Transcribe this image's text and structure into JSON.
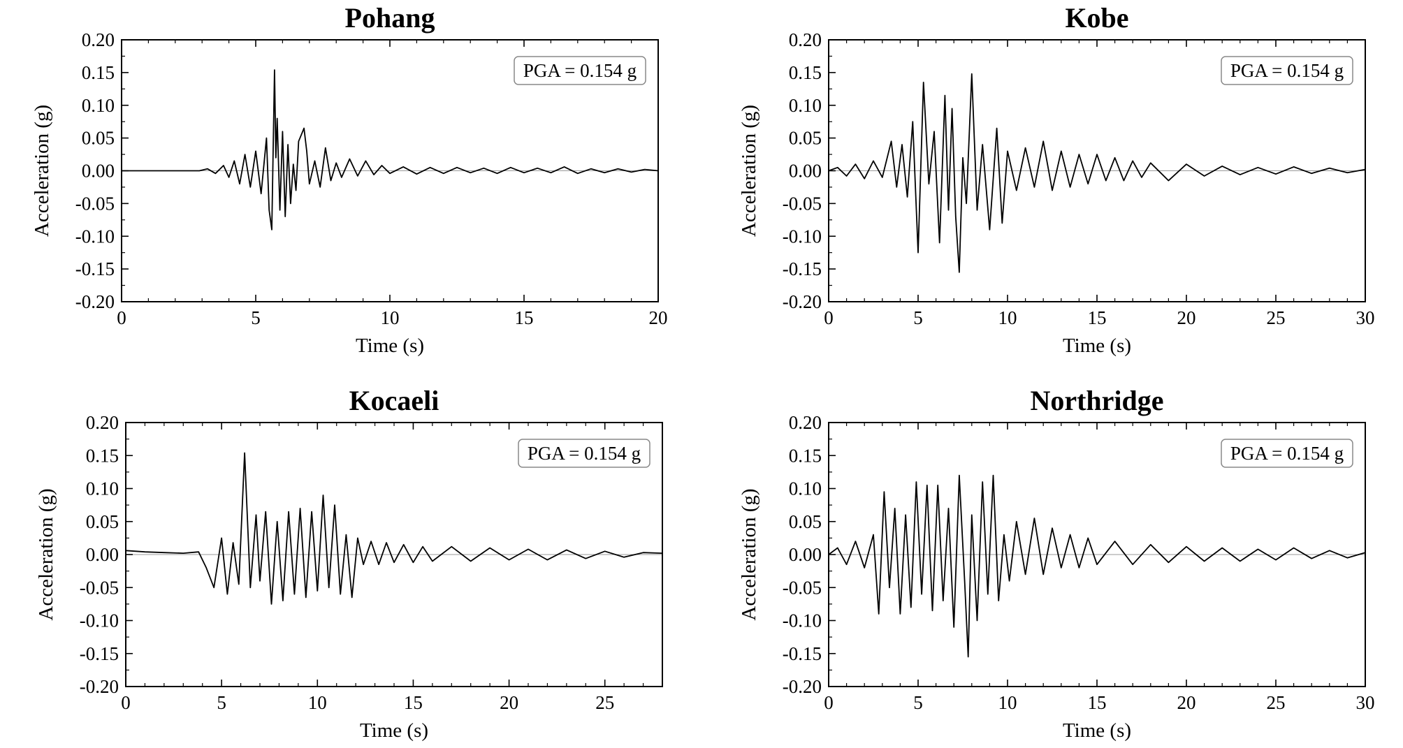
{
  "chart_data": [
    {
      "type": "line",
      "title": "Pohang",
      "xlabel": "Time (s)",
      "ylabel": "Acceleration (g)",
      "xlim": [
        0,
        20
      ],
      "ylim": [
        -0.2,
        0.2
      ],
      "xticks": [
        0,
        5,
        10,
        15,
        20
      ],
      "xtick_labels": [
        "0",
        "5",
        "10",
        "15",
        "20"
      ],
      "yticks": [
        0.2,
        0.15,
        0.1,
        0.05,
        0.0,
        -0.05,
        -0.1,
        -0.15,
        -0.2
      ],
      "ytick_labels": [
        "0.20",
        "0.15",
        "0.10",
        "0.05",
        "0.00",
        "-0.05",
        "-0.10",
        "-0.15",
        "-0.20"
      ],
      "annotation": "PGA = 0.154 g",
      "legend_position": "top-right",
      "grid": false,
      "series": [
        {
          "x": [
            0,
            2.9,
            3.2,
            3.5,
            3.8,
            4.0,
            4.2,
            4.4,
            4.6,
            4.8,
            5.0,
            5.2,
            5.4,
            5.5,
            5.6,
            5.7,
            5.75,
            5.8,
            5.9,
            6.0,
            6.1,
            6.2,
            6.3,
            6.4,
            6.5,
            6.6,
            6.8,
            6.9,
            7.0,
            7.2,
            7.4,
            7.6,
            7.8,
            8.0,
            8.2,
            8.5,
            8.8,
            9.1,
            9.4,
            9.7,
            10.0,
            10.5,
            11.0,
            11.5,
            12.0,
            12.5,
            13.0,
            13.5,
            14.0,
            14.5,
            15.0,
            15.5,
            16.0,
            16.5,
            17.0,
            17.5,
            18.0,
            18.5,
            19.0,
            19.5,
            20.0
          ],
          "y": [
            0,
            0,
            0.003,
            -0.004,
            0.008,
            -0.01,
            0.015,
            -0.02,
            0.025,
            -0.025,
            0.03,
            -0.035,
            0.05,
            -0.06,
            -0.09,
            0.154,
            0.02,
            0.08,
            -0.06,
            0.06,
            -0.07,
            0.04,
            -0.05,
            0.01,
            -0.03,
            0.045,
            0.065,
            0.03,
            -0.02,
            0.015,
            -0.025,
            0.035,
            -0.015,
            0.012,
            -0.01,
            0.018,
            -0.008,
            0.015,
            -0.006,
            0.008,
            -0.004,
            0.006,
            -0.005,
            0.005,
            -0.004,
            0.005,
            -0.003,
            0.004,
            -0.004,
            0.005,
            -0.003,
            0.004,
            -0.003,
            0.006,
            -0.004,
            0.003,
            -0.003,
            0.003,
            -0.002,
            0.002,
            0
          ]
        }
      ]
    },
    {
      "type": "line",
      "title": "Kobe",
      "xlabel": "Time (s)",
      "ylabel": "Acceleration (g)",
      "xlim": [
        0,
        30
      ],
      "ylim": [
        -0.2,
        0.2
      ],
      "xticks": [
        0,
        5,
        10,
        15,
        20,
        25,
        30
      ],
      "xtick_labels": [
        "0",
        "5",
        "10",
        "15",
        "20",
        "25",
        "30"
      ],
      "yticks": [
        0.2,
        0.15,
        0.1,
        0.05,
        0.0,
        -0.05,
        -0.1,
        -0.15,
        -0.2
      ],
      "ytick_labels": [
        "0.20",
        "0.15",
        "0.10",
        "0.05",
        "0.00",
        "-0.05",
        "-0.10",
        "-0.15",
        "-0.20"
      ],
      "annotation": "PGA = 0.154 g",
      "legend_position": "top-right",
      "grid": false,
      "series": [
        {
          "x": [
            0,
            0.5,
            1.0,
            1.5,
            2.0,
            2.5,
            3.0,
            3.5,
            3.8,
            4.1,
            4.4,
            4.7,
            5.0,
            5.3,
            5.6,
            5.9,
            6.2,
            6.5,
            6.7,
            6.9,
            7.1,
            7.3,
            7.5,
            7.7,
            8.0,
            8.3,
            8.6,
            9.0,
            9.4,
            9.7,
            10.0,
            10.5,
            11.0,
            11.5,
            12.0,
            12.5,
            13.0,
            13.5,
            14.0,
            14.5,
            15.0,
            15.5,
            16.0,
            16.5,
            17.0,
            17.5,
            18.0,
            19.0,
            20.0,
            21.0,
            22.0,
            23.0,
            24.0,
            25.0,
            26.0,
            27.0,
            28.0,
            29.0,
            30.0
          ],
          "y": [
            0,
            0.005,
            -0.008,
            0.01,
            -0.012,
            0.015,
            -0.01,
            0.045,
            -0.025,
            0.04,
            -0.04,
            0.075,
            -0.125,
            0.135,
            -0.02,
            0.06,
            -0.11,
            0.115,
            -0.06,
            0.095,
            -0.07,
            -0.155,
            0.02,
            -0.05,
            0.148,
            -0.06,
            0.04,
            -0.09,
            0.065,
            -0.08,
            0.03,
            -0.03,
            0.035,
            -0.025,
            0.045,
            -0.03,
            0.03,
            -0.025,
            0.025,
            -0.02,
            0.025,
            -0.015,
            0.02,
            -0.015,
            0.015,
            -0.01,
            0.012,
            -0.015,
            0.01,
            -0.008,
            0.007,
            -0.006,
            0.005,
            -0.005,
            0.006,
            -0.004,
            0.004,
            -0.003,
            0.002
          ]
        }
      ]
    },
    {
      "type": "line",
      "title": "Kocaeli",
      "xlabel": "Time (s)",
      "ylabel": "Acceleration (g)",
      "xlim": [
        0,
        28
      ],
      "ylim": [
        -0.2,
        0.2
      ],
      "xticks": [
        0,
        5,
        10,
        15,
        20,
        25
      ],
      "xtick_labels": [
        "0",
        "5",
        "10",
        "15",
        "20",
        "25"
      ],
      "yticks": [
        0.2,
        0.15,
        0.1,
        0.05,
        0.0,
        -0.05,
        -0.1,
        -0.15,
        -0.2
      ],
      "ytick_labels": [
        "0.20",
        "0.15",
        "0.10",
        "0.05",
        "0.00",
        "-0.05",
        "-0.10",
        "-0.15",
        "-0.20"
      ],
      "annotation": "PGA = 0.154 g",
      "legend_position": "top-right",
      "grid": false,
      "series": [
        {
          "x": [
            0,
            1.0,
            2.0,
            3.0,
            3.8,
            4.2,
            4.6,
            5.0,
            5.3,
            5.6,
            5.9,
            6.2,
            6.5,
            6.8,
            7.0,
            7.3,
            7.6,
            7.9,
            8.2,
            8.5,
            8.8,
            9.1,
            9.4,
            9.7,
            10.0,
            10.3,
            10.6,
            10.9,
            11.2,
            11.5,
            11.8,
            12.1,
            12.4,
            12.8,
            13.2,
            13.6,
            14.0,
            14.5,
            15.0,
            15.5,
            16.0,
            17.0,
            18.0,
            19.0,
            20.0,
            21.0,
            22.0,
            23.0,
            24.0,
            25.0,
            26.0,
            27.0,
            28.0
          ],
          "y": [
            0.006,
            0.004,
            0.003,
            0.002,
            0.004,
            -0.02,
            -0.05,
            0.025,
            -0.06,
            0.018,
            -0.045,
            0.154,
            -0.05,
            0.06,
            -0.04,
            0.065,
            -0.075,
            0.05,
            -0.07,
            0.065,
            -0.06,
            0.07,
            -0.065,
            0.065,
            -0.055,
            0.09,
            -0.05,
            0.075,
            -0.06,
            0.03,
            -0.065,
            0.025,
            -0.015,
            0.02,
            -0.015,
            0.018,
            -0.012,
            0.015,
            -0.012,
            0.012,
            -0.01,
            0.012,
            -0.01,
            0.01,
            -0.008,
            0.008,
            -0.008,
            0.007,
            -0.006,
            0.005,
            -0.004,
            0.003,
            0.002
          ]
        }
      ]
    },
    {
      "type": "line",
      "title": "Northridge",
      "xlabel": "Time (s)",
      "ylabel": "Acceleration (g)",
      "xlim": [
        0,
        30
      ],
      "ylim": [
        -0.2,
        0.2
      ],
      "xticks": [
        0,
        5,
        10,
        15,
        20,
        25,
        30
      ],
      "xtick_labels": [
        "0",
        "5",
        "10",
        "15",
        "20",
        "25",
        "30"
      ],
      "yticks": [
        0.2,
        0.15,
        0.1,
        0.05,
        0.0,
        -0.05,
        -0.1,
        -0.15,
        -0.2
      ],
      "ytick_labels": [
        "0.20",
        "0.15",
        "0.10",
        "0.05",
        "0.00",
        "-0.05",
        "-0.10",
        "-0.15",
        "-0.20"
      ],
      "annotation": "PGA = 0.154 g",
      "legend_position": "top-right",
      "grid": false,
      "series": [
        {
          "x": [
            0,
            0.5,
            1.0,
            1.5,
            2.0,
            2.5,
            2.8,
            3.1,
            3.4,
            3.7,
            4.0,
            4.3,
            4.6,
            4.9,
            5.2,
            5.5,
            5.8,
            6.1,
            6.4,
            6.7,
            7.0,
            7.3,
            7.6,
            7.8,
            8.0,
            8.3,
            8.6,
            8.9,
            9.2,
            9.5,
            9.8,
            10.1,
            10.5,
            11.0,
            11.5,
            12.0,
            12.5,
            13.0,
            13.5,
            14.0,
            14.5,
            15.0,
            16.0,
            17.0,
            18.0,
            19.0,
            20.0,
            21.0,
            22.0,
            23.0,
            24.0,
            25.0,
            26.0,
            27.0,
            28.0,
            29.0,
            30.0
          ],
          "y": [
            0,
            0.01,
            -0.015,
            0.02,
            -0.02,
            0.03,
            -0.09,
            0.095,
            -0.05,
            0.07,
            -0.09,
            0.06,
            -0.08,
            0.11,
            -0.06,
            0.105,
            -0.085,
            0.105,
            -0.07,
            0.07,
            -0.11,
            0.12,
            -0.04,
            -0.155,
            0.06,
            -0.1,
            0.11,
            -0.06,
            0.12,
            -0.07,
            0.03,
            -0.04,
            0.05,
            -0.03,
            0.055,
            -0.03,
            0.04,
            -0.02,
            0.03,
            -0.02,
            0.025,
            -0.015,
            0.02,
            -0.015,
            0.015,
            -0.012,
            0.012,
            -0.01,
            0.01,
            -0.01,
            0.008,
            -0.008,
            0.01,
            -0.006,
            0.006,
            -0.005,
            0.003
          ]
        }
      ]
    }
  ]
}
